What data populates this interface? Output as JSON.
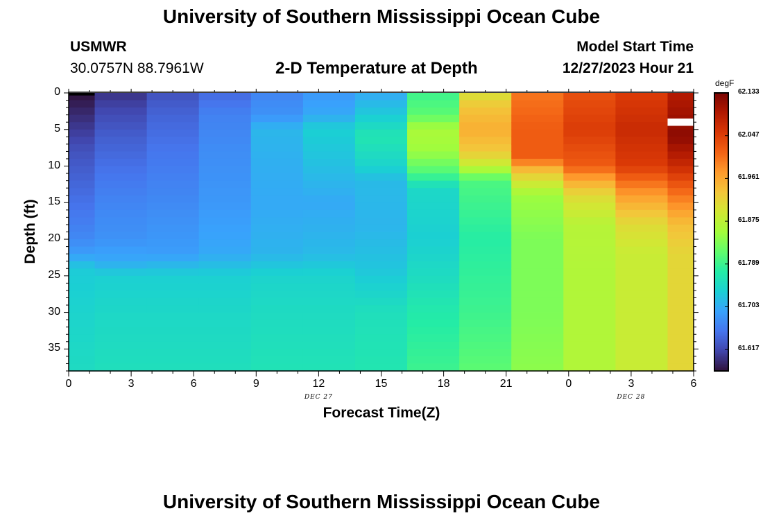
{
  "page": {
    "title_top": "University of Southern Mississippi Ocean Cube",
    "title_bottom": "University of Southern Mississippi Ocean Cube",
    "station_id": "USMWR",
    "station_coords": "30.0757N  88.7961W",
    "plot_title": "2-D Temperature at Depth",
    "model_start_label": "Model Start Time",
    "model_start_value": "12/27/2023 Hour 21"
  },
  "colors": {
    "palette": [
      "#30123b",
      "#4145ab",
      "#4675ed",
      "#39a2fc",
      "#1bcfd4",
      "#24eca6",
      "#61fc6c",
      "#a4fc3b",
      "#d1e834",
      "#f3c63a",
      "#fe9b2d",
      "#f36315",
      "#d93806",
      "#b11901",
      "#7a0402"
    ]
  },
  "chart_data": {
    "type": "heatmap",
    "title": "2-D Temperature at Depth",
    "xlabel": "Forecast Time(Z)",
    "ylabel": "Depth (ft)",
    "x_tick_labels": [
      "0",
      "3",
      "6",
      "9",
      "12",
      "15",
      "18",
      "21",
      "0",
      "3",
      "6"
    ],
    "x_date_labels": [
      {
        "label": "DEC 27",
        "at_tick_index": 4
      },
      {
        "label": "DEC 28",
        "at_tick_index": 9
      }
    ],
    "y_ticks": [
      0,
      5,
      10,
      15,
      20,
      25,
      30,
      35
    ],
    "ylim": [
      0,
      38
    ],
    "xlim": [
      0,
      30
    ],
    "colorbar": {
      "unit": "degF",
      "range": [
        61.574,
        62.133
      ],
      "tick_labels": [
        "62.133",
        "62.047",
        "61.961",
        "61.875",
        "61.789",
        "61.703",
        "61.617"
      ]
    },
    "columns": [
      {
        "t_start": 0,
        "t_end": 1.25,
        "profile": [
          [
            0,
            61.574
          ],
          [
            4,
            61.6
          ],
          [
            8,
            61.625
          ],
          [
            12,
            61.64
          ],
          [
            16,
            61.655
          ],
          [
            20,
            61.672
          ],
          [
            22,
            61.69
          ],
          [
            24,
            61.73
          ],
          [
            30,
            61.74
          ],
          [
            38,
            61.75
          ]
        ]
      },
      {
        "t_start": 1.25,
        "t_end": 3.75,
        "profile": [
          [
            0,
            61.6
          ],
          [
            3,
            61.62
          ],
          [
            6,
            61.635
          ],
          [
            10,
            61.65
          ],
          [
            15,
            61.668
          ],
          [
            20,
            61.68
          ],
          [
            23,
            61.7
          ],
          [
            25,
            61.735
          ],
          [
            30,
            61.745
          ],
          [
            38,
            61.755
          ]
        ]
      },
      {
        "t_start": 3.75,
        "t_end": 6.25,
        "profile": [
          [
            0,
            61.625
          ],
          [
            3,
            61.64
          ],
          [
            8,
            61.655
          ],
          [
            15,
            61.672
          ],
          [
            22,
            61.69
          ],
          [
            25,
            61.735
          ],
          [
            30,
            61.745
          ],
          [
            38,
            61.755
          ]
        ]
      },
      {
        "t_start": 6.25,
        "t_end": 8.75,
        "profile": [
          [
            0,
            61.645
          ],
          [
            3,
            61.665
          ],
          [
            8,
            61.675
          ],
          [
            15,
            61.685
          ],
          [
            22,
            61.7
          ],
          [
            25,
            61.735
          ],
          [
            30,
            61.745
          ],
          [
            38,
            61.755
          ]
        ]
      },
      {
        "t_start": 8.75,
        "t_end": 11.25,
        "profile": [
          [
            0,
            61.668
          ],
          [
            3,
            61.68
          ],
          [
            5,
            61.712
          ],
          [
            10,
            61.705
          ],
          [
            15,
            61.7
          ],
          [
            22,
            61.71
          ],
          [
            25,
            61.74
          ],
          [
            30,
            61.75
          ],
          [
            38,
            61.76
          ]
        ]
      },
      {
        "t_start": 11.25,
        "t_end": 13.75,
        "profile": [
          [
            0,
            61.685
          ],
          [
            3,
            61.7
          ],
          [
            5,
            61.735
          ],
          [
            10,
            61.72
          ],
          [
            15,
            61.7
          ],
          [
            22,
            61.715
          ],
          [
            25,
            61.74
          ],
          [
            30,
            61.75
          ],
          [
            38,
            61.76
          ]
        ]
      },
      {
        "t_start": 13.75,
        "t_end": 16.25,
        "profile": [
          [
            0,
            61.7
          ],
          [
            3,
            61.73
          ],
          [
            6,
            61.765
          ],
          [
            10,
            61.74
          ],
          [
            12,
            61.715
          ],
          [
            18,
            61.71
          ],
          [
            24,
            61.725
          ],
          [
            30,
            61.755
          ],
          [
            38,
            61.765
          ]
        ]
      },
      {
        "t_start": 16.25,
        "t_end": 18.75,
        "profile": [
          [
            0,
            61.79
          ],
          [
            3,
            61.81
          ],
          [
            5,
            61.86
          ],
          [
            8,
            61.85
          ],
          [
            11,
            61.8
          ],
          [
            13,
            61.745
          ],
          [
            20,
            61.735
          ],
          [
            25,
            61.75
          ],
          [
            30,
            61.77
          ],
          [
            38,
            61.79
          ]
        ]
      },
      {
        "t_start": 18.75,
        "t_end": 21.25,
        "profile": [
          [
            0,
            61.9
          ],
          [
            2,
            61.935
          ],
          [
            5,
            61.955
          ],
          [
            8,
            61.93
          ],
          [
            10,
            61.88
          ],
          [
            12,
            61.8
          ],
          [
            20,
            61.775
          ],
          [
            30,
            61.79
          ],
          [
            38,
            61.81
          ]
        ]
      },
      {
        "t_start": 21.25,
        "t_end": 23.75,
        "profile": [
          [
            0,
            62.0
          ],
          [
            5,
            62.02
          ],
          [
            9,
            62.02
          ],
          [
            10,
            61.96
          ],
          [
            12,
            61.9
          ],
          [
            14,
            61.85
          ],
          [
            20,
            61.83
          ],
          [
            30,
            61.83
          ],
          [
            38,
            61.84
          ]
        ]
      },
      {
        "t_start": 23.75,
        "t_end": 26.25,
        "profile": [
          [
            0,
            62.03
          ],
          [
            5,
            62.05
          ],
          [
            10,
            62.02
          ],
          [
            12,
            61.96
          ],
          [
            14,
            61.91
          ],
          [
            18,
            61.87
          ],
          [
            25,
            61.865
          ],
          [
            38,
            61.865
          ]
        ]
      },
      {
        "t_start": 26.25,
        "t_end": 28.75,
        "profile": [
          [
            0,
            62.05
          ],
          [
            5,
            62.07
          ],
          [
            10,
            62.05
          ],
          [
            14,
            61.97
          ],
          [
            18,
            61.91
          ],
          [
            22,
            61.885
          ],
          [
            30,
            61.885
          ],
          [
            38,
            61.885
          ]
        ]
      },
      {
        "t_start": 28.75,
        "t_end": 30,
        "profile": [
          [
            0,
            62.09
          ],
          [
            6,
            62.12
          ],
          [
            10,
            62.07
          ],
          [
            14,
            62.0
          ],
          [
            18,
            61.94
          ],
          [
            22,
            61.915
          ],
          [
            30,
            61.915
          ],
          [
            38,
            61.915
          ]
        ]
      }
    ],
    "missing_cell": {
      "t_start": 28.75,
      "t_end": 30,
      "depth_top": 3.5,
      "depth_bottom": 4.5
    }
  }
}
